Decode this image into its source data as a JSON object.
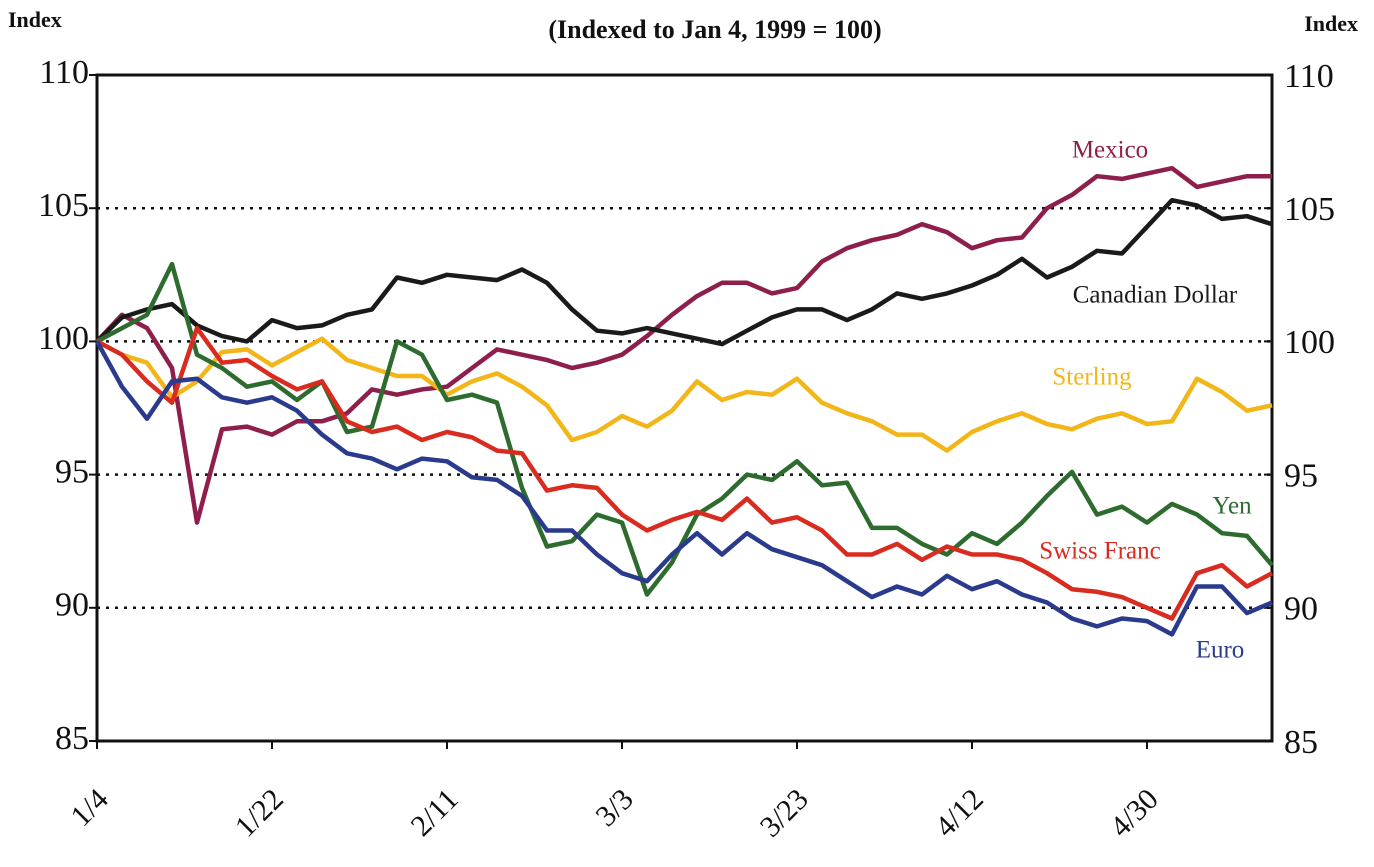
{
  "chart_data": {
    "type": "line",
    "title": "(Indexed to Jan 4, 1999 = 100)",
    "y_label": "Index",
    "y2_label": "Index",
    "categories": [
      "1/4",
      null,
      null,
      null,
      null,
      null,
      null,
      "1/22",
      null,
      null,
      null,
      null,
      null,
      null,
      "2/11",
      null,
      null,
      null,
      null,
      null,
      null,
      "3/3",
      null,
      null,
      null,
      null,
      null,
      null,
      "3/23",
      null,
      null,
      null,
      null,
      null,
      null,
      "4/12",
      null,
      null,
      null,
      null,
      null,
      null,
      "4/30",
      null,
      null,
      null,
      null,
      null
    ],
    "ylim": [
      85,
      110
    ],
    "yticks": [
      85,
      90,
      95,
      100,
      105,
      110
    ],
    "y2lim": [
      85,
      110
    ],
    "y2ticks": [
      85,
      90,
      95,
      100,
      105,
      110
    ],
    "grid": true,
    "series": [
      {
        "name": "Mexico",
        "color": "#8e1f4c",
        "values": [
          100,
          101,
          100.5,
          99,
          93.2,
          96.7,
          96.8,
          96.5,
          97,
          97,
          97.3,
          98.2,
          98,
          98.2,
          98.3,
          99,
          99.7,
          99.5,
          99.3,
          99,
          99.2,
          99.5,
          100.2,
          101,
          101.7,
          102.2,
          102.2,
          101.8,
          102,
          103,
          103.5,
          103.8,
          104,
          104.4,
          104.1,
          103.5,
          103.8,
          103.9,
          105,
          105.5,
          106.2,
          106.1,
          106.3,
          106.5,
          105.8,
          106,
          106.2,
          106.2
        ]
      },
      {
        "name": "Canadian Dollar",
        "color": "#1a1a1a",
        "values": [
          100,
          100.9,
          101.2,
          101.4,
          100.6,
          100.2,
          100,
          100.8,
          100.5,
          100.6,
          101,
          101.2,
          102.4,
          102.2,
          102.5,
          102.4,
          102.3,
          102.7,
          102.2,
          101.2,
          100.4,
          100.3,
          100.5,
          100.3,
          100.1,
          99.9,
          100.4,
          100.9,
          101.2,
          101.2,
          100.8,
          101.2,
          101.8,
          101.6,
          101.8,
          102.1,
          102.5,
          103.1,
          102.4,
          102.8,
          103.4,
          103.3,
          104.3,
          105.3,
          105.1,
          104.6,
          104.7,
          104.4
        ]
      },
      {
        "name": "Sterling",
        "color": "#f2b619",
        "values": [
          100,
          99.5,
          99.2,
          97.9,
          98.5,
          99.6,
          99.7,
          99.1,
          99.6,
          100.1,
          99.3,
          99,
          98.7,
          98.7,
          98,
          98.5,
          98.8,
          98.3,
          97.6,
          96.3,
          96.6,
          97.2,
          96.8,
          97.4,
          98.5,
          97.8,
          98.1,
          98,
          98.6,
          97.7,
          97.3,
          97,
          96.5,
          96.5,
          95.9,
          96.6,
          97,
          97.3,
          96.9,
          96.7,
          97.1,
          97.3,
          96.9,
          97,
          98.6,
          98.1,
          97.4,
          97.6
        ]
      },
      {
        "name": "Yen",
        "color": "#2e6b2e",
        "values": [
          100,
          100.5,
          101,
          102.9,
          99.5,
          99,
          98.3,
          98.5,
          97.8,
          98.5,
          96.6,
          96.8,
          100,
          99.5,
          97.8,
          98,
          97.7,
          94.5,
          92.3,
          92.5,
          93.5,
          93.2,
          90.5,
          91.7,
          93.5,
          94.1,
          95,
          94.8,
          95.5,
          94.6,
          94.7,
          93,
          93,
          92.4,
          92,
          92.8,
          92.4,
          93.2,
          94.2,
          95.1,
          93.5,
          93.8,
          93.2,
          93.9,
          93.5,
          92.8,
          92.7,
          91.6
        ]
      },
      {
        "name": "Swiss Franc",
        "color": "#d92b1f",
        "values": [
          100,
          99.5,
          98.5,
          97.7,
          100.5,
          99.2,
          99.3,
          98.7,
          98.2,
          98.5,
          97,
          96.6,
          96.8,
          96.3,
          96.6,
          96.4,
          95.9,
          95.8,
          94.4,
          94.6,
          94.5,
          93.5,
          92.9,
          93.3,
          93.6,
          93.3,
          94.1,
          93.2,
          93.4,
          92.9,
          92,
          92,
          92.4,
          91.8,
          92.3,
          92,
          92,
          91.8,
          91.3,
          90.7,
          90.6,
          90.4,
          90,
          89.6,
          91.3,
          91.6,
          90.8,
          91.3
        ]
      },
      {
        "name": "Euro",
        "color": "#2a3a8c",
        "values": [
          100,
          98.3,
          97.1,
          98.5,
          98.6,
          97.9,
          97.7,
          97.9,
          97.4,
          96.5,
          95.8,
          95.6,
          95.2,
          95.6,
          95.5,
          94.9,
          94.8,
          94.2,
          92.9,
          92.9,
          92,
          91.3,
          91,
          92,
          92.8,
          92,
          92.8,
          92.2,
          91.9,
          91.6,
          91,
          90.4,
          90.8,
          90.5,
          91.2,
          90.7,
          91,
          90.5,
          90.2,
          89.6,
          89.3,
          89.6,
          89.5,
          89,
          90.8,
          90.8,
          89.8,
          90.2
        ]
      }
    ]
  }
}
